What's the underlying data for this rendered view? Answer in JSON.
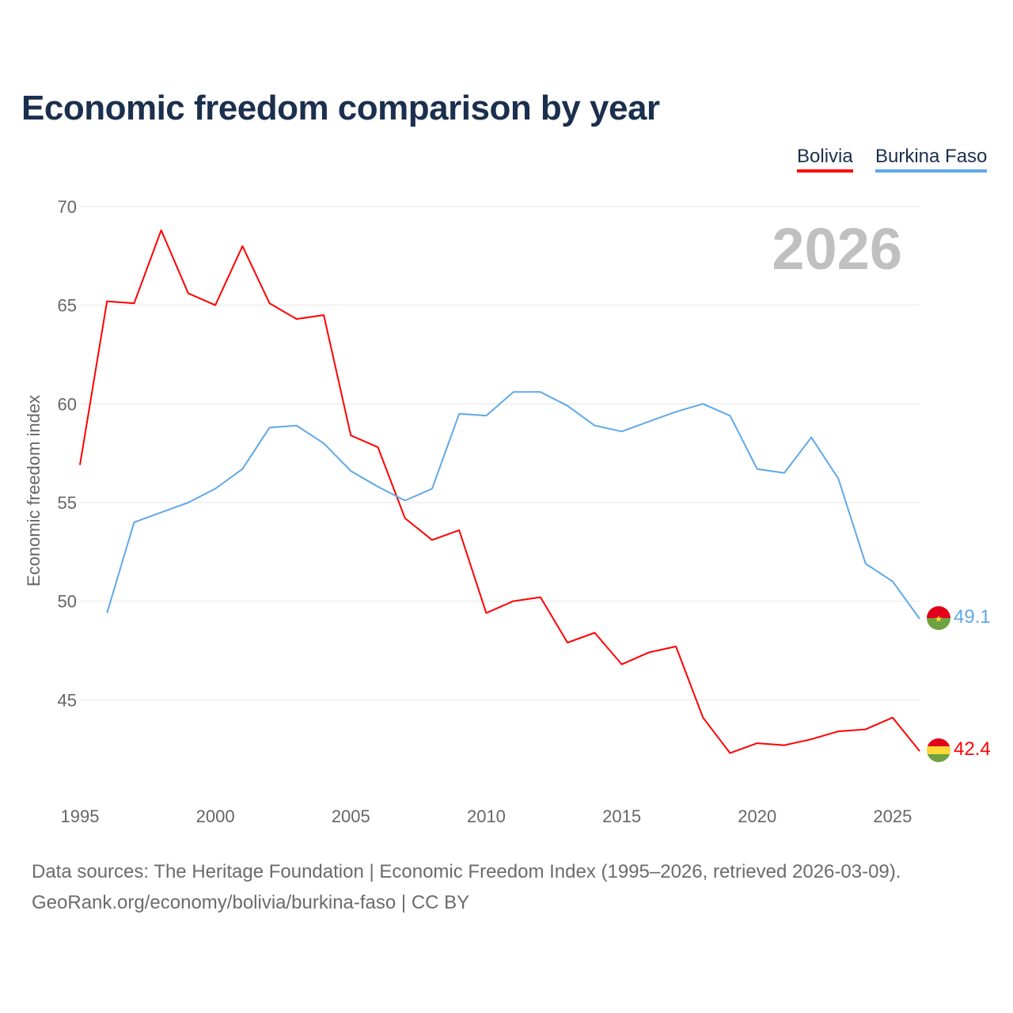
{
  "chart_data": {
    "type": "line",
    "title": "Economic freedom comparison by year",
    "ylabel": "Economic freedom index",
    "xlabel": "",
    "xlim": [
      1995,
      2026
    ],
    "ylim": [
      40,
      70
    ],
    "x_ticks": [
      1995,
      2000,
      2005,
      2010,
      2015,
      2020,
      2025
    ],
    "y_ticks": [
      45,
      50,
      55,
      60,
      65,
      70
    ],
    "grid": true,
    "legend_placement": "top-right",
    "watermark_year": "2026",
    "series": [
      {
        "name": "Bolivia",
        "color": "#ff0000",
        "end_label": "42.4",
        "x": [
          1995,
          1996,
          1997,
          1998,
          1999,
          2000,
          2001,
          2002,
          2003,
          2004,
          2005,
          2006,
          2007,
          2008,
          2009,
          2010,
          2011,
          2012,
          2013,
          2014,
          2015,
          2016,
          2017,
          2018,
          2019,
          2020,
          2021,
          2022,
          2023,
          2024,
          2025,
          2026
        ],
        "values": [
          56.9,
          65.2,
          65.1,
          68.8,
          65.6,
          65.0,
          68.0,
          65.1,
          64.3,
          64.5,
          58.4,
          57.8,
          54.2,
          53.1,
          53.6,
          49.4,
          50.0,
          50.2,
          47.9,
          48.4,
          46.8,
          47.4,
          47.7,
          44.1,
          42.3,
          42.8,
          42.7,
          43.0,
          43.4,
          43.5,
          44.1,
          42.4
        ]
      },
      {
        "name": "Burkina Faso",
        "color": "#5fa8e8",
        "end_label": "49.1",
        "x": [
          1996,
          1997,
          1998,
          1999,
          2000,
          2001,
          2002,
          2003,
          2004,
          2005,
          2006,
          2007,
          2008,
          2009,
          2010,
          2011,
          2012,
          2013,
          2014,
          2015,
          2016,
          2017,
          2018,
          2019,
          2020,
          2021,
          2022,
          2023,
          2024,
          2025,
          2026
        ],
        "values": [
          49.4,
          54.0,
          54.5,
          55.0,
          55.7,
          56.7,
          58.8,
          58.9,
          58.0,
          56.6,
          55.8,
          55.1,
          55.7,
          59.5,
          59.4,
          60.6,
          60.6,
          59.9,
          58.9,
          58.6,
          59.1,
          59.6,
          60.0,
          59.4,
          56.7,
          56.5,
          58.3,
          56.2,
          51.9,
          51.0,
          49.1
        ]
      }
    ]
  },
  "footer": {
    "line1": "Data sources: The Heritage Foundation | Economic Freedom Index (1995–2026, retrieved 2026-03-09).",
    "line2": "GeoRank.org/economy/bolivia/burkina-faso | CC BY"
  }
}
